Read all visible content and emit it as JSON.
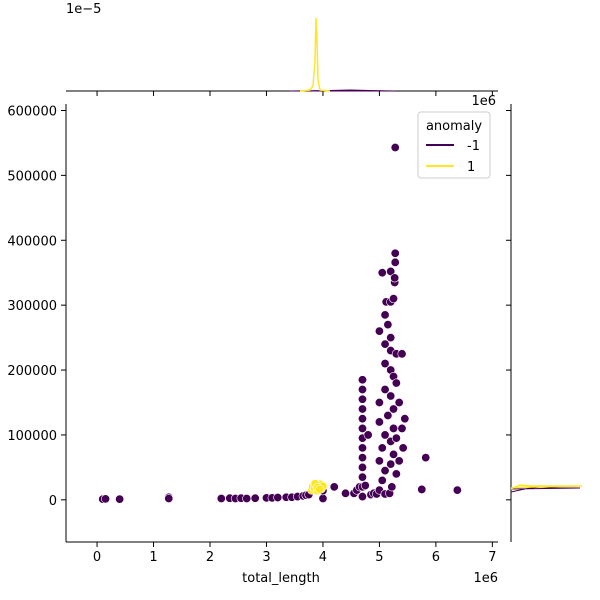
{
  "chart_data": {
    "type": "scatter",
    "xlabel": "total_length",
    "ylabel": "",
    "x_offset_label": "1e6",
    "y_offset_label": "",
    "top_marginal_offset_label": "1e−5",
    "right_marginal_offset_label": "1e6",
    "xlim": [
      -0.55,
      7.1
    ],
    "ylim": [
      -65000,
      610000
    ],
    "x_ticks": [
      0,
      1,
      2,
      3,
      4,
      5,
      6,
      7
    ],
    "x_tick_labels": [
      "0",
      "1",
      "2",
      "3",
      "4",
      "5",
      "6",
      "7"
    ],
    "y_ticks": [
      0,
      100000,
      200000,
      300000,
      400000,
      500000,
      600000
    ],
    "y_tick_labels": [
      "0",
      "100000",
      "200000",
      "300000",
      "400000",
      "500000",
      "600000"
    ],
    "legend": {
      "title": "anomaly",
      "position": "top-right",
      "entries": [
        {
          "label": "-1",
          "color": "#440154"
        },
        {
          "label": "1",
          "color": "#fde725"
        }
      ]
    },
    "colors": {
      "anomaly_neg": "#440154",
      "anomaly_pos": "#fde725"
    },
    "series": [
      {
        "name": "-1",
        "color": "#440154",
        "points": [
          [
            0.1,
            1000
          ],
          [
            0.15,
            1500
          ],
          [
            0.4,
            1000
          ],
          [
            1.27,
            4000
          ],
          [
            1.27,
            2000
          ],
          [
            2.2,
            2000
          ],
          [
            2.35,
            2500
          ],
          [
            2.45,
            2000
          ],
          [
            2.55,
            2500
          ],
          [
            2.65,
            2000
          ],
          [
            2.8,
            2500
          ],
          [
            3.0,
            3000
          ],
          [
            3.1,
            3000
          ],
          [
            3.2,
            3500
          ],
          [
            3.35,
            4000
          ],
          [
            3.45,
            4000
          ],
          [
            3.55,
            5000
          ],
          [
            3.65,
            6000
          ],
          [
            3.7,
            7000
          ],
          [
            3.75,
            8000
          ],
          [
            4.0,
            2000
          ],
          [
            4.0,
            14000
          ],
          [
            4.2,
            20000
          ],
          [
            4.4,
            10000
          ],
          [
            4.55,
            10000
          ],
          [
            4.6,
            15000
          ],
          [
            4.65,
            20000
          ],
          [
            4.7,
            5000
          ],
          [
            4.7,
            20000
          ],
          [
            4.7,
            35000
          ],
          [
            4.7,
            50000
          ],
          [
            4.7,
            65000
          ],
          [
            4.7,
            80000
          ],
          [
            4.7,
            95000
          ],
          [
            4.7,
            110000
          ],
          [
            4.7,
            125000
          ],
          [
            4.7,
            140000
          ],
          [
            4.7,
            155000
          ],
          [
            4.7,
            170000
          ],
          [
            4.7,
            185000
          ],
          [
            4.75,
            22000
          ],
          [
            4.8,
            100000
          ],
          [
            4.85,
            8000
          ],
          [
            4.9,
            10000
          ],
          [
            4.95,
            9000
          ],
          [
            5.0,
            15000
          ],
          [
            5.0,
            60000
          ],
          [
            5.0,
            120000
          ],
          [
            5.0,
            150000
          ],
          [
            5.0,
            260000
          ],
          [
            5.05,
            350000
          ],
          [
            5.05,
            30000
          ],
          [
            5.05,
            80000
          ],
          [
            5.1,
            9000
          ],
          [
            5.1,
            45000
          ],
          [
            5.1,
            100000
          ],
          [
            5.1,
            170000
          ],
          [
            5.1,
            210000
          ],
          [
            5.1,
            240000
          ],
          [
            5.1,
            285000
          ],
          [
            5.12,
            305000
          ],
          [
            5.15,
            130000
          ],
          [
            5.15,
            270000
          ],
          [
            5.18,
            10000
          ],
          [
            5.2,
            55000
          ],
          [
            5.2,
            90000
          ],
          [
            5.2,
            160000
          ],
          [
            5.2,
            200000
          ],
          [
            5.2,
            230000
          ],
          [
            5.2,
            250000
          ],
          [
            5.2,
            305000
          ],
          [
            5.2,
            352000
          ],
          [
            5.22,
            20000
          ],
          [
            5.25,
            70000
          ],
          [
            5.25,
            110000
          ],
          [
            5.25,
            140000
          ],
          [
            5.25,
            190000
          ],
          [
            5.25,
            310000
          ],
          [
            5.27,
            335000
          ],
          [
            5.27,
            342000
          ],
          [
            5.28,
            366000
          ],
          [
            5.28,
            380000
          ],
          [
            5.28,
            543000
          ],
          [
            5.3,
            40000
          ],
          [
            5.3,
            95000
          ],
          [
            5.3,
            180000
          ],
          [
            5.3,
            225000
          ],
          [
            5.35,
            60000
          ],
          [
            5.35,
            150000
          ],
          [
            5.4,
            110000
          ],
          [
            5.4,
            225000
          ],
          [
            5.42,
            80000
          ],
          [
            5.45,
            125000
          ],
          [
            5.75,
            16000
          ],
          [
            5.82,
            65000
          ],
          [
            6.38,
            15000
          ]
        ]
      },
      {
        "name": "1",
        "color": "#fde725",
        "points": [
          [
            3.8,
            15000
          ],
          [
            3.82,
            20000
          ],
          [
            3.85,
            18000
          ],
          [
            3.88,
            22000
          ],
          [
            3.9,
            14000
          ],
          [
            3.92,
            20000
          ],
          [
            3.95,
            24000
          ],
          [
            3.97,
            17000
          ],
          [
            4.0,
            21000
          ],
          [
            3.86,
            25000
          ],
          [
            3.9,
            19000
          ],
          [
            3.94,
            16000
          ]
        ]
      }
    ]
  }
}
